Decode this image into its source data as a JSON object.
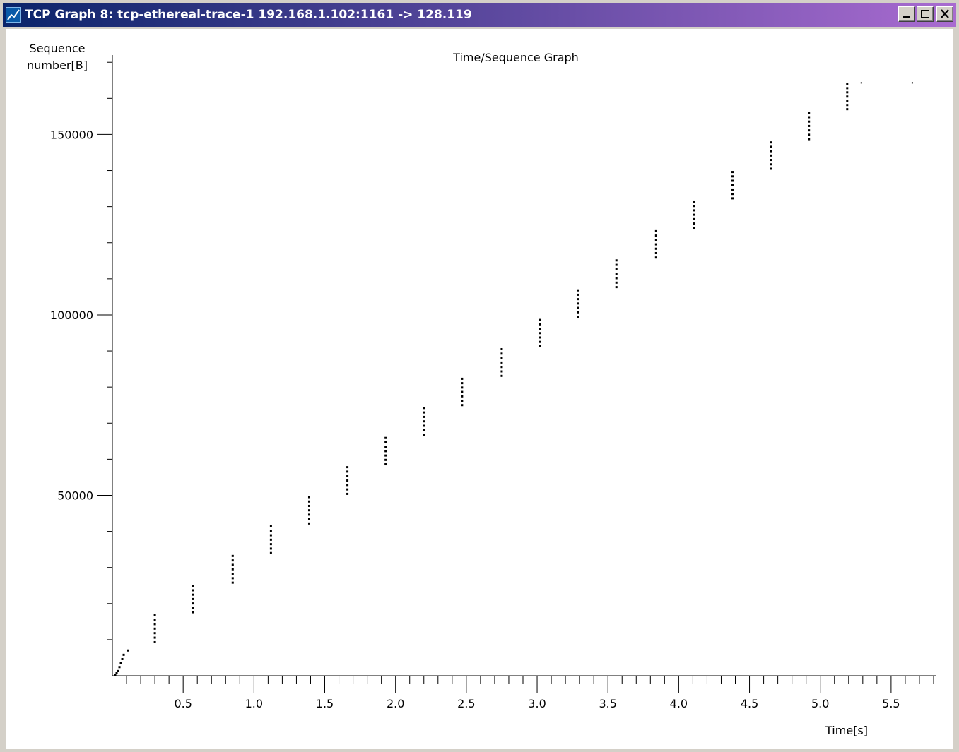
{
  "window": {
    "title": "TCP Graph 8: tcp-ethereal-trace-1 192.168.1.102:1161 -> 128.119",
    "icon": "graph-app-icon",
    "controls": [
      "minimize-icon",
      "maximize-icon",
      "close-icon"
    ],
    "titlebar_colors": [
      "#0a246a",
      "#a96bd0"
    ]
  },
  "chart_data": {
    "type": "scatter",
    "title": "Time/Sequence Graph",
    "xlabel": "Time[s]",
    "ylabel_lines": [
      "Sequence",
      "number[B]"
    ],
    "xlim": [
      0.0,
      5.82
    ],
    "ylim": [
      0,
      172000
    ],
    "x_tick_labels": [
      "0.5",
      "1.0",
      "1.5",
      "2.0",
      "2.5",
      "3.0",
      "3.5",
      "4.0",
      "4.5",
      "5.0",
      "5.5"
    ],
    "x_major_ticks": [
      0.5,
      1.0,
      1.5,
      2.0,
      2.5,
      3.0,
      3.5,
      4.0,
      4.5,
      5.0,
      5.5
    ],
    "x_minor_step": 0.1,
    "y_tick_labels": [
      "50000",
      "100000",
      "150000"
    ],
    "y_major_ticks": [
      50000,
      100000,
      150000
    ],
    "y_minor_step": 10000,
    "grid": false,
    "marker_color": "#000000",
    "initial_points": [
      {
        "x": 0.02,
        "y": 300
      },
      {
        "x": 0.03,
        "y": 700
      },
      {
        "x": 0.04,
        "y": 1300
      },
      {
        "x": 0.05,
        "y": 2400
      },
      {
        "x": 0.06,
        "y": 3500
      },
      {
        "x": 0.07,
        "y": 4600
      },
      {
        "x": 0.08,
        "y": 5800
      },
      {
        "x": 0.11,
        "y": 7000
      }
    ],
    "bursts": [
      {
        "x": 0.3,
        "y_start": 9300,
        "y_end": 16800,
        "count": 7
      },
      {
        "x": 0.57,
        "y_start": 17600,
        "y_end": 24900,
        "count": 7
      },
      {
        "x": 0.85,
        "y_start": 25800,
        "y_end": 33200,
        "count": 7
      },
      {
        "x": 1.12,
        "y_start": 34000,
        "y_end": 41400,
        "count": 7
      },
      {
        "x": 1.39,
        "y_start": 42200,
        "y_end": 49500,
        "count": 7
      },
      {
        "x": 1.66,
        "y_start": 50400,
        "y_end": 57800,
        "count": 7
      },
      {
        "x": 1.93,
        "y_start": 58600,
        "y_end": 65900,
        "count": 7
      },
      {
        "x": 2.2,
        "y_start": 66800,
        "y_end": 74200,
        "count": 7
      },
      {
        "x": 2.47,
        "y_start": 75000,
        "y_end": 82300,
        "count": 7
      },
      {
        "x": 2.75,
        "y_start": 83100,
        "y_end": 90500,
        "count": 7
      },
      {
        "x": 3.02,
        "y_start": 91300,
        "y_end": 98600,
        "count": 7
      },
      {
        "x": 3.29,
        "y_start": 99500,
        "y_end": 106800,
        "count": 7
      },
      {
        "x": 3.56,
        "y_start": 107700,
        "y_end": 115100,
        "count": 7
      },
      {
        "x": 3.84,
        "y_start": 115900,
        "y_end": 123200,
        "count": 7
      },
      {
        "x": 4.11,
        "y_start": 124100,
        "y_end": 131400,
        "count": 7
      },
      {
        "x": 4.38,
        "y_start": 132300,
        "y_end": 139600,
        "count": 7
      },
      {
        "x": 4.65,
        "y_start": 140500,
        "y_end": 147800,
        "count": 7
      },
      {
        "x": 4.92,
        "y_start": 148700,
        "y_end": 156000,
        "count": 7
      },
      {
        "x": 5.19,
        "y_start": 157000,
        "y_end": 164000,
        "count": 7
      }
    ],
    "tail_points": [
      {
        "x": 5.29,
        "y": 164300
      },
      {
        "x": 5.65,
        "y": 164300
      }
    ]
  }
}
